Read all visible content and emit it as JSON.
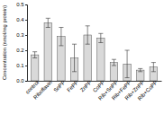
{
  "chart_data": {
    "type": "bar",
    "y_label": "Concentration (nmol/mg protein)",
    "categories": [
      "control",
      "Riboflavin",
      "SnPP",
      "FePP",
      "ZnPP",
      "CoPP",
      "Rib+SnPP",
      "Rib+FePP",
      "Rib+ZnPP",
      "Rib+CoPP"
    ],
    "values": [
      0.17,
      0.38,
      0.29,
      0.15,
      0.3,
      0.28,
      0.12,
      0.11,
      0.07,
      0.09
    ],
    "errors": [
      0.02,
      0.03,
      0.06,
      0.09,
      0.06,
      0.03,
      0.02,
      0.09,
      0.01,
      0.03
    ],
    "color": "#d9d9d9",
    "ylim": [
      0,
      0.5
    ],
    "yticks": [
      {
        "value": 0,
        "label": "0.0"
      },
      0.1,
      0.2,
      0.3,
      0.4,
      0.5
    ],
    "grid": false
  }
}
